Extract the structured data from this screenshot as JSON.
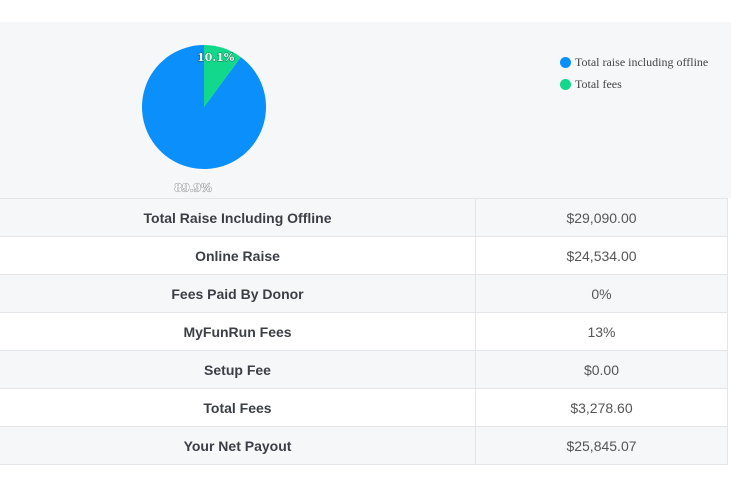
{
  "chart_data": {
    "type": "pie",
    "slices": [
      {
        "label": "Total raise including offline",
        "value": 89.9,
        "display": "89.9%",
        "color": "#0b8ffa"
      },
      {
        "label": "Total fees",
        "value": 10.1,
        "display": "10.1%",
        "color": "#12d88c"
      }
    ],
    "legend_position": "right"
  },
  "summary": {
    "rows": [
      {
        "label": "Total Raise Including Offline",
        "value": "$29,090.00"
      },
      {
        "label": "Online Raise",
        "value": "$24,534.00"
      },
      {
        "label": "Fees Paid By Donor",
        "value": "0%"
      },
      {
        "label": "MyFunRun Fees",
        "value": "13%"
      },
      {
        "label": "Setup Fee",
        "value": "$0.00"
      },
      {
        "label": "Total Fees",
        "value": "$3,278.60"
      },
      {
        "label": "Your Net Payout",
        "value": "$25,845.07"
      }
    ]
  }
}
